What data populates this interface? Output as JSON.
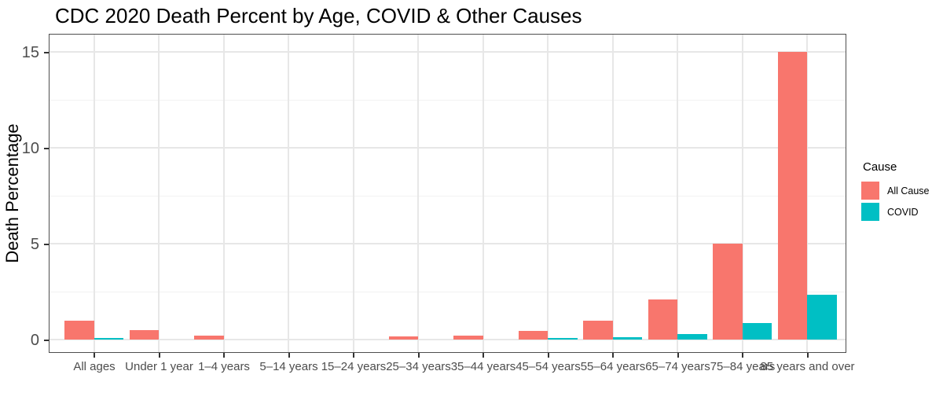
{
  "title": "CDC 2020 Death Percent by Age, COVID & Other Causes",
  "legend": {
    "title": "Cause",
    "entries": [
      {
        "label": "All Cause",
        "color": "#F8766D"
      },
      {
        "label": "COVID",
        "color": "#00BFC4"
      }
    ]
  },
  "colors": {
    "all_cause": "#F8766D",
    "covid": "#00BFC4",
    "panel_border": "#4e4e4e",
    "grid_major": "#e7e7e7",
    "axis_text": "#4d4d4d"
  },
  "chart_data": {
    "type": "bar",
    "title": "CDC 2020 Death Percent by Age, COVID & Other Causes",
    "xlabel": "",
    "ylabel": "Death Percentage",
    "categories": [
      "All ages",
      "Under 1 year",
      "1–4 years",
      "5–14 years",
      "15–24 years",
      "25–34 years",
      "35–44 years",
      "45–54 years",
      "55–64 years",
      "65–74 years",
      "75–84 years",
      "85 years and over"
    ],
    "series": [
      {
        "name": "All Cause",
        "color": "#F8766D",
        "values": [
          1.0,
          0.5,
          0.2,
          0,
          0,
          0.15,
          0.2,
          0.45,
          1.0,
          2.1,
          5.0,
          15.0
        ]
      },
      {
        "name": "COVID",
        "color": "#00BFC4",
        "values": [
          0.1,
          0,
          0,
          0,
          0,
          0,
          0,
          0.07,
          0.13,
          0.3,
          0.85,
          2.35
        ]
      }
    ],
    "ylim": [
      0,
      15.75
    ],
    "yticks": [
      0,
      5,
      10,
      15
    ],
    "y_minor_ticks": [
      2.5,
      7.5,
      12.5
    ],
    "grid": true,
    "legend_position": "right",
    "bar_layout": "dodged"
  }
}
